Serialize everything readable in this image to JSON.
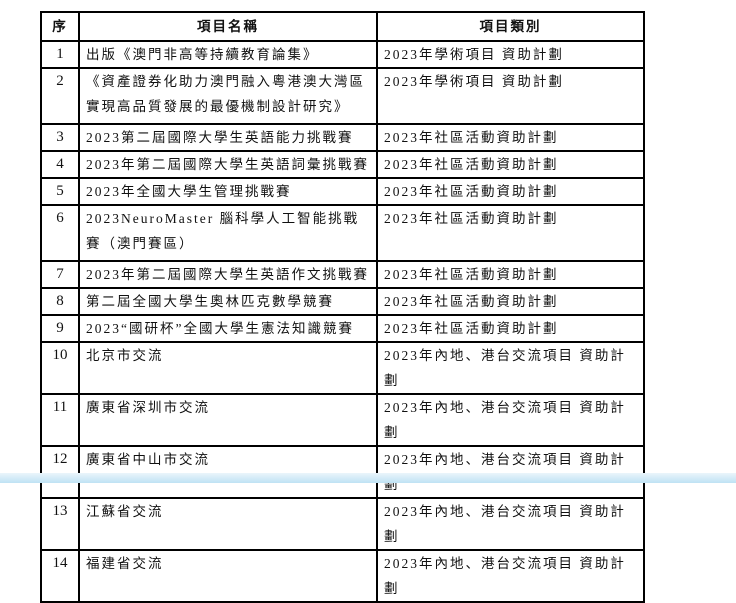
{
  "table": {
    "headers": [
      "序",
      "項目名稱",
      "項目類別"
    ],
    "rows": [
      {
        "no": "1",
        "name": "出版《澳門非高等持續教育論集》",
        "category": "2023年學術項目 資助計劃"
      },
      {
        "no": "2",
        "name": "《資產證券化助力澳門融入粵港澳大灣區實現高品質發展的最優機制設計研究》",
        "category": "2023年學術項目 資助計劃"
      },
      {
        "no": "3",
        "name": "2023第二屆國際大學生英語能力挑戰賽",
        "category": "2023年社區活動資助計劃"
      },
      {
        "no": "4",
        "name": "2023年第二屆國際大學生英語詞彙挑戰賽",
        "category": "2023年社區活動資助計劃"
      },
      {
        "no": "5",
        "name": "2023年全國大學生管理挑戰賽",
        "category": "2023年社區活動資助計劃"
      },
      {
        "no": "6",
        "name": "2023NeuroMaster 腦科學人工智能挑戰賽（澳門賽區）",
        "category": "2023年社區活動資助計劃"
      },
      {
        "no": "7",
        "name": "2023年第二屆國際大學生英語作文挑戰賽",
        "category": "2023年社區活動資助計劃"
      },
      {
        "no": "8",
        "name": "第二屆全國大學生奧林匹克數學競賽",
        "category": "2023年社區活動資助計劃"
      },
      {
        "no": "9",
        "name": "2023“國研杯”全國大學生憲法知識競賽",
        "category": "2023年社區活動資助計劃"
      },
      {
        "no": "10",
        "name": "北京市交流",
        "category": "2023年內地、港台交流項目 資助計劃"
      },
      {
        "no": "11",
        "name": "廣東省深圳市交流",
        "category": "2023年內地、港台交流項目 資助計劃"
      },
      {
        "no": "12",
        "name": "廣東省中山市交流",
        "category": "2023年內地、港台交流項目 資助計劃"
      },
      {
        "no": "13",
        "name": "江蘇省交流",
        "category": "2023年內地、港台交流項目 資助計劃"
      },
      {
        "no": "14",
        "name": "福建省交流",
        "category": "2023年內地、港台交流項目 資助計劃"
      }
    ]
  }
}
